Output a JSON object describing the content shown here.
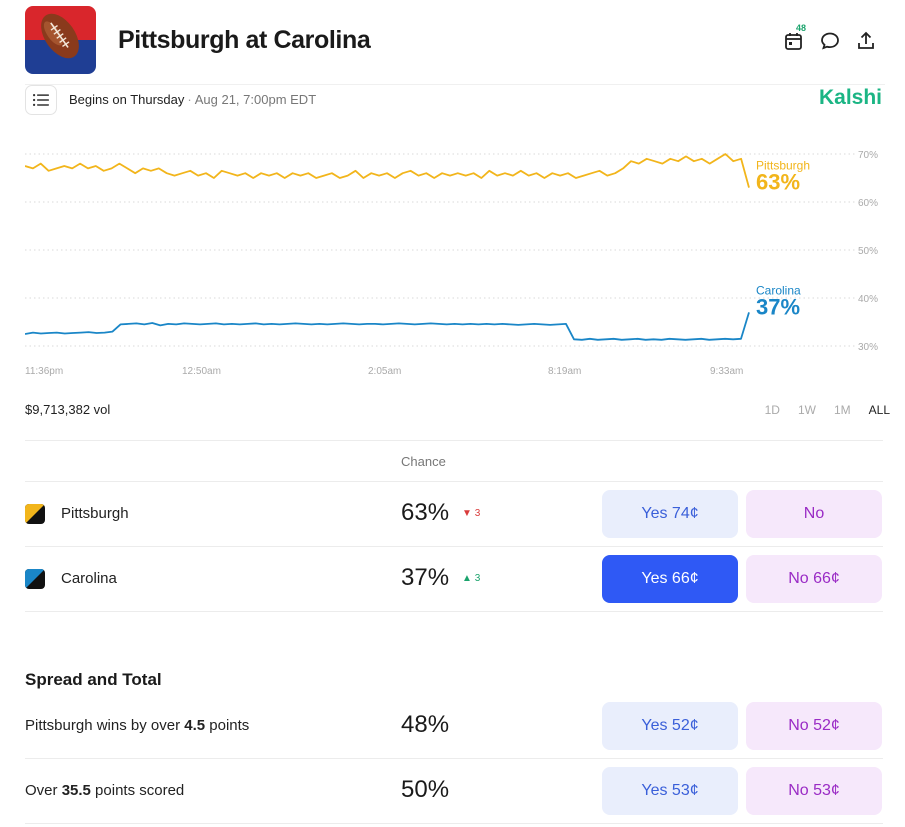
{
  "header": {
    "title": "Pittsburgh at Carolina",
    "calendar_badge": "48",
    "logo_icon": "football-icon"
  },
  "subbar": {
    "begins_label": "Begins on Thursday",
    "date": "Aug 21, 7:00pm EDT",
    "brand": "Kalshi"
  },
  "chart_data": {
    "type": "line",
    "x_tick_labels": [
      "11:36pm",
      "12:50am",
      "2:05am",
      "8:19am",
      "9:33am"
    ],
    "y_tick_labels": [
      "70%",
      "60%",
      "50%",
      "40%",
      "30%"
    ],
    "ylim": [
      30,
      70
    ],
    "grid": true,
    "series": [
      {
        "name": "Pittsburgh",
        "color": "#f2b51b",
        "end_label": "63%",
        "values": [
          67.5,
          67,
          68,
          66.5,
          67,
          67.5,
          67,
          68,
          67,
          67.5,
          66.5,
          67,
          68,
          67,
          66,
          67,
          66.5,
          67,
          66,
          65.5,
          66,
          66.5,
          65.5,
          66,
          65,
          66.5,
          66,
          65.5,
          66,
          65,
          66,
          65.5,
          66,
          65,
          66,
          65.5,
          66,
          65,
          65.5,
          66,
          65,
          65.5,
          66.5,
          65,
          66,
          65.5,
          66,
          65,
          66,
          66.5,
          65.5,
          66,
          65,
          66,
          65.5,
          66,
          65.5,
          66,
          65,
          66.5,
          65.5,
          66,
          65.5,
          66.5,
          65.5,
          66,
          65,
          66,
          65.5,
          66,
          65,
          65.5,
          66,
          66.5,
          65.5,
          66,
          67,
          68.5,
          68,
          69,
          68.5,
          68,
          69,
          68.5,
          69.5,
          68.5,
          69,
          68,
          69,
          70,
          68.5,
          69,
          63
        ]
      },
      {
        "name": "Carolina",
        "color": "#1a86c7",
        "end_label": "37%",
        "values": [
          32.5,
          32.8,
          32.6,
          32.7,
          32.8,
          32.6,
          32.7,
          32.8,
          32.9,
          32.7,
          32.8,
          33,
          34.5,
          34.6,
          34.7,
          34.5,
          34.8,
          34.3,
          34.6,
          34.5,
          34.7,
          34.6,
          34.5,
          34.6,
          34.7,
          34.5,
          34.6,
          34.5,
          34.6,
          34.7,
          34.5,
          34.6,
          34.5,
          34.6,
          34.7,
          34.6,
          34.5,
          34.6,
          34.5,
          34.6,
          34.7,
          34.6,
          34.5,
          34.6,
          34.6,
          34.5,
          34.6,
          34.7,
          34.6,
          34.5,
          34.6,
          34.7,
          34.6,
          34.5,
          34.6,
          34.5,
          34.6,
          34.5,
          34.6,
          34.5,
          34.6,
          34.5,
          34.4,
          34.5,
          34.6,
          34.5,
          34.4,
          34.5,
          34.6,
          31.4,
          31.3,
          31.5,
          31.3,
          31.4,
          31.5,
          31.3,
          31.4,
          31.5,
          31.3,
          31.4,
          31.3,
          31.5,
          31.4,
          31.3,
          31.4,
          31.5,
          31.3,
          31.4,
          31.5,
          31.4,
          31.5,
          37
        ]
      }
    ]
  },
  "volume": "$9,713,382 vol",
  "ranges": [
    "1D",
    "1W",
    "1M",
    "ALL"
  ],
  "table": {
    "chance_header": "Chance",
    "rows": [
      {
        "name": "Pittsburgh",
        "chance": "63%",
        "delta": "3",
        "delta_arrow": "▼",
        "delta_color": "#d93b3b",
        "yes_label": "Yes 74¢",
        "no_label": "No",
        "swatch_color_a": "#f2b51b",
        "swatch_color_b": "#111111"
      },
      {
        "name": "Carolina",
        "chance": "37%",
        "delta": "3",
        "delta_arrow": "▲",
        "delta_color": "#1aa36c",
        "yes_label": "Yes 66¢",
        "no_label": "No 66¢",
        "swatch_color_a": "#1a86c7",
        "swatch_color_b": "#111111"
      }
    ]
  },
  "spread": {
    "title": "Spread and Total",
    "rows": [
      {
        "text_pre": "Pittsburgh wins by over ",
        "text_bold": "4.5",
        "text_post": " points",
        "chance": "48%",
        "yes_label": "Yes 52¢",
        "no_label": "No 52¢"
      },
      {
        "text_pre": "Over ",
        "text_bold": "35.5",
        "text_post": " points scored",
        "chance": "50%",
        "yes_label": "Yes 53¢",
        "no_label": "No 53¢"
      }
    ]
  }
}
